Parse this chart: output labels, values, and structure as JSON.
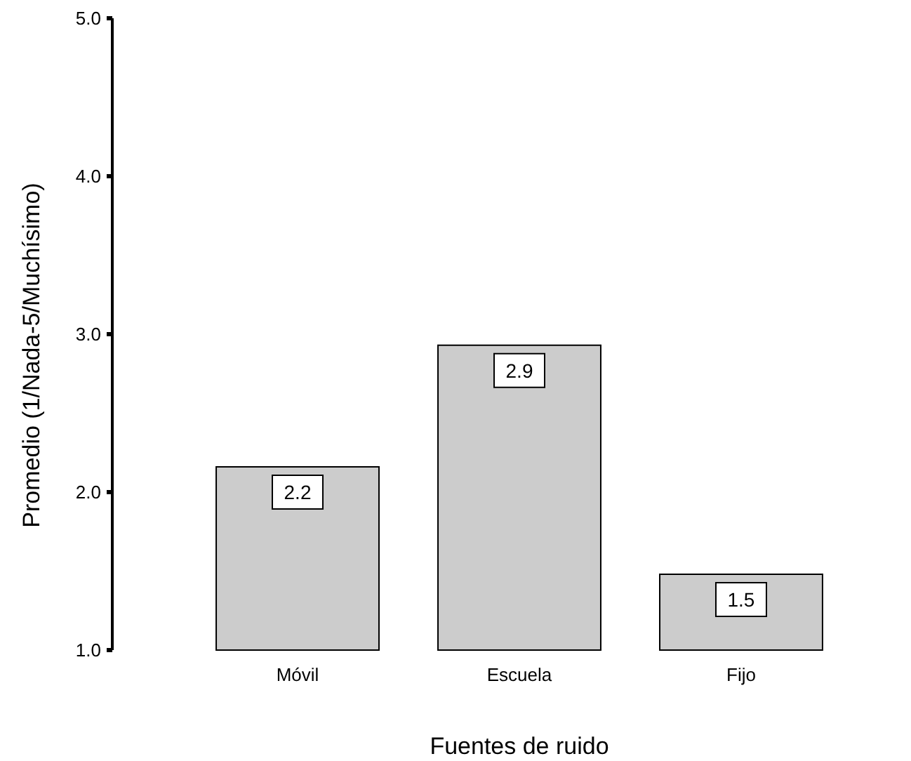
{
  "chart_data": {
    "type": "bar",
    "xlabel": "Fuentes de ruido",
    "ylabel": "Promedio (1/Nada-5/Muchísimo)",
    "categories": [
      "Móvil",
      "Escuela",
      "Fijo"
    ],
    "values": [
      2.16,
      2.93,
      1.48
    ],
    "value_labels": [
      "2.2",
      "2.9",
      "1.5"
    ],
    "color": "#cccccc",
    "ylim": [
      1,
      5
    ],
    "yticks": [
      {
        "value": 1,
        "label": "1.0"
      },
      {
        "value": 2,
        "label": "2.0"
      },
      {
        "value": 3,
        "label": "3.0"
      },
      {
        "value": 4,
        "label": "4.0"
      },
      {
        "value": 5,
        "label": "5.0"
      }
    ]
  }
}
